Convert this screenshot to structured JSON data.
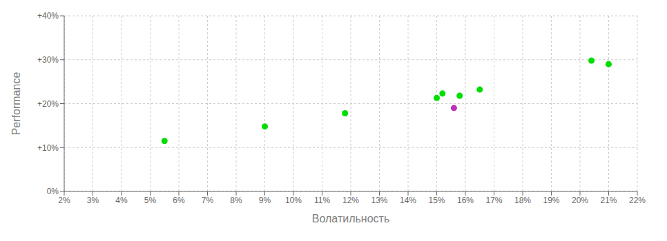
{
  "chart_data": {
    "type": "scatter",
    "xlabel": "Волатильность",
    "ylabel": "Performance",
    "x": [
      0.055,
      0.09,
      0.118,
      0.15,
      0.152,
      0.156,
      0.158,
      0.165,
      0.204,
      0.21
    ],
    "values": [
      0.115,
      0.148,
      0.178,
      0.213,
      0.223,
      0.19,
      0.218,
      0.232,
      0.298,
      0.29
    ],
    "colors": [
      "#00dd00",
      "#00dd00",
      "#00dd00",
      "#00dd00",
      "#00dd00",
      "#bb33bb",
      "#00dd00",
      "#00dd00",
      "#00dd00",
      "#00dd00"
    ],
    "xlim": [
      0.02,
      0.22
    ],
    "ylim": [
      0.0,
      0.4
    ],
    "xticks": [
      {
        "value": 0.02,
        "label": "2%"
      },
      {
        "value": 0.03,
        "label": "3%"
      },
      {
        "value": 0.04,
        "label": "4%"
      },
      {
        "value": 0.05,
        "label": "5%"
      },
      {
        "value": 0.06,
        "label": "6%"
      },
      {
        "value": 0.07,
        "label": "7%"
      },
      {
        "value": 0.08,
        "label": "8%"
      },
      {
        "value": 0.09,
        "label": "9%"
      },
      {
        "value": 0.1,
        "label": "10%"
      },
      {
        "value": 0.11,
        "label": "11%"
      },
      {
        "value": 0.12,
        "label": "12%"
      },
      {
        "value": 0.13,
        "label": "13%"
      },
      {
        "value": 0.14,
        "label": "14%"
      },
      {
        "value": 0.15,
        "label": "15%"
      },
      {
        "value": 0.16,
        "label": "16%"
      },
      {
        "value": 0.17,
        "label": "17%"
      },
      {
        "value": 0.18,
        "label": "18%"
      },
      {
        "value": 0.19,
        "label": "19%"
      },
      {
        "value": 0.2,
        "label": "20%"
      },
      {
        "value": 0.21,
        "label": "21%"
      },
      {
        "value": 0.22,
        "label": "22%"
      }
    ],
    "yticks": [
      {
        "value": 0.0,
        "label": "0%"
      },
      {
        "value": 0.1,
        "label": "+10%"
      },
      {
        "value": 0.2,
        "label": "+20%"
      },
      {
        "value": 0.3,
        "label": "+30%"
      },
      {
        "value": 0.4,
        "label": "+40%"
      }
    ],
    "grid": true
  }
}
